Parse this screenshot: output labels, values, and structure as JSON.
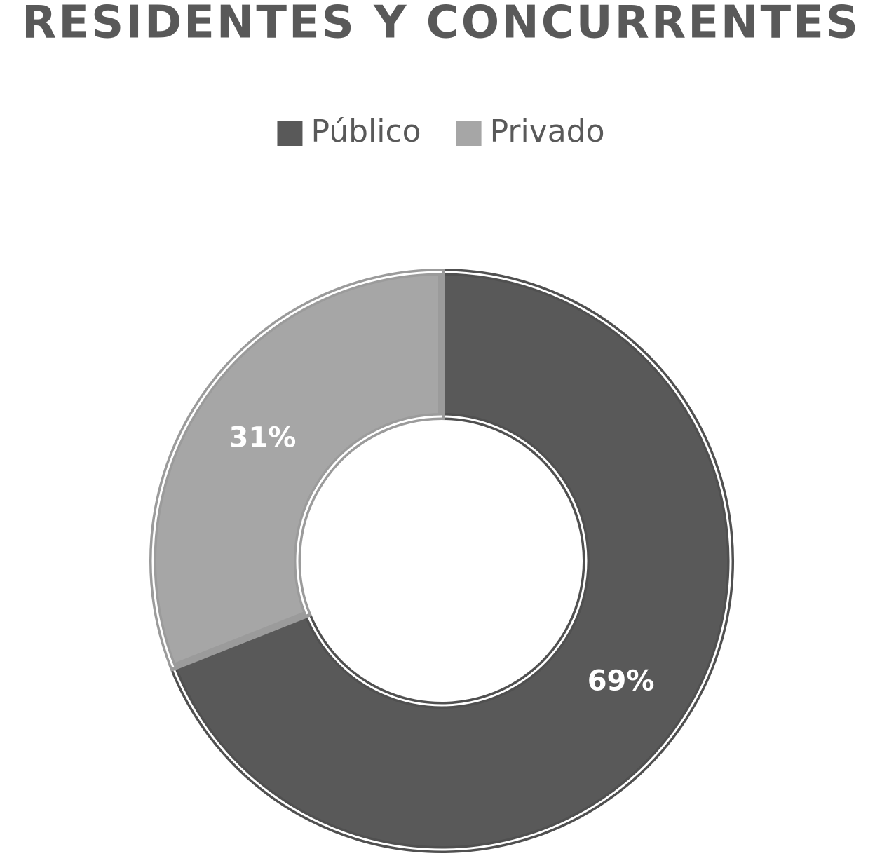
{
  "chart_data": {
    "type": "donut",
    "title": "RESIDENTES Y CONCURRENTES",
    "categories": [
      "Público",
      "Privado"
    ],
    "values": [
      69,
      31
    ],
    "value_labels": [
      "69%",
      "31%"
    ],
    "colors": [
      "#595959",
      "#a6a6a6"
    ],
    "legend": "top"
  }
}
